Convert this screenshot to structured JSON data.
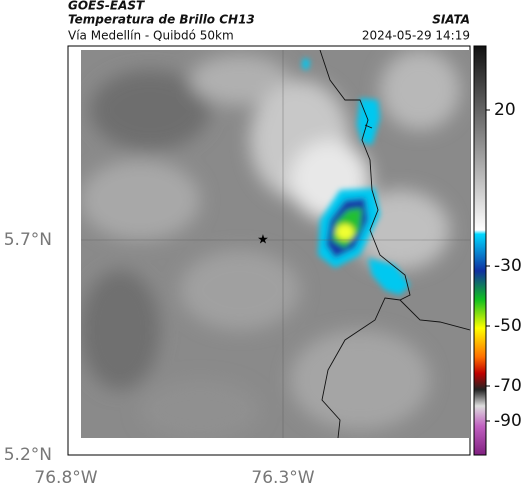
{
  "header": {
    "source": "GOES-EAST",
    "title": "Temperatura de Brillo CH13",
    "subtitle": "Vía Medellín - Quibdó 50km",
    "org": "SIATA",
    "timestamp": "2024-05-29 14:19"
  },
  "map": {
    "lat_labels": [
      "5.7°N",
      "5.2°N"
    ],
    "lon_labels": [
      "76.8°W",
      "76.3°W"
    ]
  },
  "colorbar": {
    "ticks": [
      20,
      -30,
      -50,
      -70,
      -90
    ]
  }
}
